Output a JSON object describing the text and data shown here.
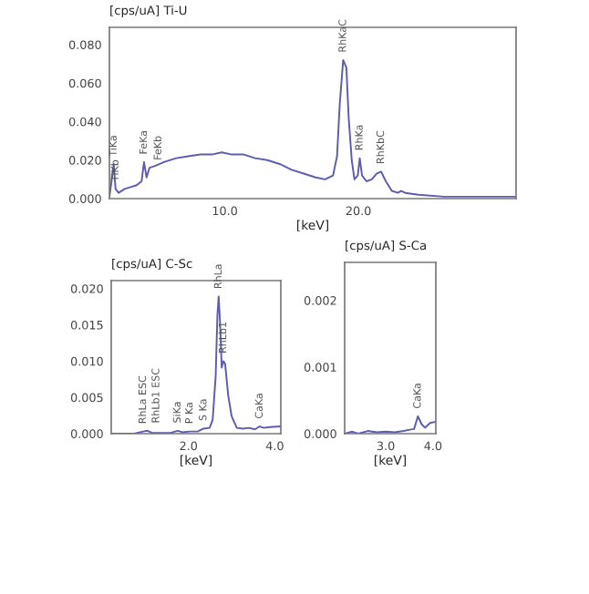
{
  "chart_data": [
    {
      "type": "line",
      "title": "[cps/uA] Ti-U",
      "xlabel": "[keV]",
      "x": [
        1.36,
        1.5,
        1.68,
        1.82,
        2.05,
        2.5,
        2.95,
        3.4,
        3.77,
        3.95,
        4.14,
        4.36,
        4.77,
        5.45,
        6.36,
        7.27,
        8.18,
        9.1,
        9.77,
        10.45,
        11.36,
        12.27,
        13.18,
        14.1,
        15.0,
        15.9,
        16.8,
        17.5,
        18.1,
        18.4,
        18.6,
        18.86,
        19.1,
        19.27,
        19.5,
        19.7,
        19.95,
        20.1,
        20.27,
        20.6,
        21.0,
        21.36,
        21.7,
        22.05,
        22.5,
        22.95,
        23.2,
        23.5,
        24.5,
        26.4,
        28.6,
        31.8
      ],
      "series": [
        {
          "color": "#5c5cb0",
          "values": [
            0.001,
            0.008,
            0.018,
            0.005,
            0.003,
            0.005,
            0.006,
            0.007,
            0.009,
            0.019,
            0.011,
            0.016,
            0.017,
            0.019,
            0.021,
            0.022,
            0.023,
            0.023,
            0.024,
            0.023,
            0.023,
            0.021,
            0.02,
            0.018,
            0.015,
            0.013,
            0.011,
            0.01,
            0.012,
            0.022,
            0.049,
            0.072,
            0.068,
            0.042,
            0.02,
            0.01,
            0.012,
            0.021,
            0.012,
            0.009,
            0.01,
            0.013,
            0.014,
            0.009,
            0.004,
            0.003,
            0.004,
            0.003,
            0.002,
            0.001,
            0.001,
            0.001
          ]
        }
      ],
      "xlim": [
        1.36,
        31.8
      ],
      "ylim": [
        0,
        0.089
      ],
      "xticks": [
        {
          "value": 10,
          "label": "10.0"
        },
        {
          "value": 20,
          "label": "20.0"
        }
      ],
      "yticks": [
        {
          "value": 0,
          "label": "0.000"
        },
        {
          "value": 0.02,
          "label": "0.020"
        },
        {
          "value": 0.04,
          "label": "0.040"
        },
        {
          "value": 0.06,
          "label": "0.060"
        },
        {
          "value": 0.08,
          "label": "0.080"
        }
      ],
      "annotations": [
        {
          "text": "TiKa",
          "x": 1.68,
          "y": 0.018
        },
        {
          "text": "TiKb",
          "x": 1.82,
          "y": 0.005
        },
        {
          "text": "FeKa",
          "x": 3.95,
          "y": 0.019
        },
        {
          "text": "FeKb",
          "x": 4.36,
          "y": 0.016
        },
        {
          "text": "RhKaC",
          "x": 18.86,
          "y": 0.072
        },
        {
          "text": "RhKa",
          "x": 20.1,
          "y": 0.021
        },
        {
          "text": "RhKbC",
          "x": 21.7,
          "y": 0.014
        }
      ]
    },
    {
      "type": "line",
      "title": "[cps/uA] C-Sc",
      "xlabel": "[keV]",
      "x": [
        0.21,
        0.74,
        0.95,
        1.05,
        1.16,
        1.58,
        1.75,
        1.86,
        2.03,
        2.21,
        2.35,
        2.49,
        2.56,
        2.63,
        2.67,
        2.7,
        2.73,
        2.77,
        2.81,
        2.85,
        2.92,
        3.0,
        3.12,
        3.26,
        3.4,
        3.54,
        3.65,
        3.74,
        3.89,
        4.14
      ],
      "series": [
        {
          "color": "#5c5cb0",
          "values": [
            0.0,
            0.0,
            0.0003,
            0.0004,
            0.0001,
            0.0001,
            0.0004,
            0.0002,
            0.0003,
            0.0003,
            0.0007,
            0.0008,
            0.0019,
            0.0079,
            0.0163,
            0.0189,
            0.0155,
            0.0091,
            0.01,
            0.0096,
            0.0053,
            0.0024,
            0.0008,
            0.0007,
            0.0008,
            0.0006,
            0.001,
            0.0008,
            0.0009,
            0.001
          ]
        }
      ],
      "xlim": [
        0.21,
        4.14
      ],
      "ylim": [
        0,
        0.0211
      ],
      "xticks": [
        {
          "value": 2,
          "label": "2.0"
        },
        {
          "value": 4,
          "label": "4.0"
        }
      ],
      "yticks": [
        {
          "value": 0,
          "label": "0.000"
        },
        {
          "value": 0.005,
          "label": "0.005"
        },
        {
          "value": 0.01,
          "label": "0.010"
        },
        {
          "value": 0.015,
          "label": "0.015"
        },
        {
          "value": 0.02,
          "label": "0.020"
        }
      ],
      "annotations": [
        {
          "text": "RhLa ESC",
          "x": 0.95,
          "y": 0.0003
        },
        {
          "text": "RhLb1 ESC",
          "x": 1.05,
          "y": 0.0004
        },
        {
          "text": "SiKa",
          "x": 1.75,
          "y": 0.0004
        },
        {
          "text": "P Ka",
          "x": 2.03,
          "y": 0.0003
        },
        {
          "text": "S Ka",
          "x": 2.35,
          "y": 0.0007
        },
        {
          "text": "RhLa",
          "x": 2.7,
          "y": 0.0189
        },
        {
          "text": "RhLb1",
          "x": 2.81,
          "y": 0.01
        },
        {
          "text": "CaKa",
          "x": 3.65,
          "y": 0.001
        }
      ]
    },
    {
      "type": "line",
      "title": "[cps/uA] S-Ca",
      "xlabel": "[keV]",
      "x": [
        2.13,
        2.29,
        2.42,
        2.62,
        2.81,
        3.0,
        3.19,
        3.38,
        3.51,
        3.6,
        3.68,
        3.76,
        3.83,
        3.94,
        4.06
      ],
      "series": [
        {
          "color": "#5c5cb0",
          "values": [
            0.0,
            3e-05,
            0.0,
            4e-05,
            2e-05,
            3e-05,
            2e-05,
            4e-05,
            6e-05,
            7e-05,
            0.00026,
            0.00014,
            9e-05,
            0.00016,
            0.00018
          ]
        }
      ],
      "xlim": [
        2.13,
        4.06
      ],
      "ylim": [
        0,
        0.00257
      ],
      "xticks": [
        {
          "value": 3,
          "label": "3.0"
        },
        {
          "value": 4,
          "label": "4.0"
        }
      ],
      "yticks": [
        {
          "value": 0,
          "label": "0.000"
        },
        {
          "value": 0.001,
          "label": "0.001"
        },
        {
          "value": 0.002,
          "label": "0.002"
        }
      ],
      "annotations": [
        {
          "text": "CaKa",
          "x": 3.68,
          "y": 0.00026
        }
      ]
    }
  ]
}
